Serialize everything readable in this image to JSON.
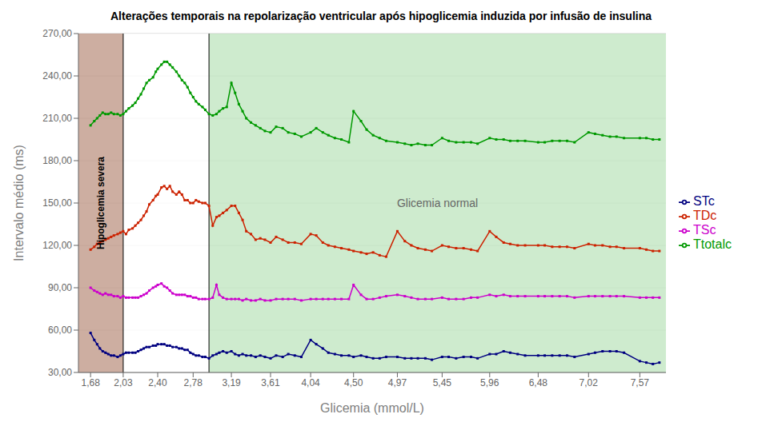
{
  "chart_data": {
    "type": "line",
    "title": "Alterações temporais na repolarização ventricular após hipoglicemia induzida por infusão de insulina",
    "x_label": "Glicemia (mmol/L)",
    "y_label": "Intervalo médio (ms)",
    "xlim": [
      1.55,
      7.85
    ],
    "ylim": [
      30,
      270
    ],
    "xticks": [
      {
        "value": 1.68,
        "label": "1,68"
      },
      {
        "value": 2.03,
        "label": "2,03"
      },
      {
        "value": 2.4,
        "label": "2,40"
      },
      {
        "value": 2.78,
        "label": "2,78"
      },
      {
        "value": 3.19,
        "label": "3,19"
      },
      {
        "value": 3.61,
        "label": "3,61"
      },
      {
        "value": 4.04,
        "label": "4,04"
      },
      {
        "value": 4.5,
        "label": "4,50"
      },
      {
        "value": 4.97,
        "label": "4,97"
      },
      {
        "value": 5.45,
        "label": "5,45"
      },
      {
        "value": 5.96,
        "label": "5,96"
      },
      {
        "value": 6.48,
        "label": "6,48"
      },
      {
        "value": 7.02,
        "label": "7,02"
      },
      {
        "value": 7.57,
        "label": "7,57"
      }
    ],
    "yticks": [
      {
        "value": 30,
        "label": "30,00"
      },
      {
        "value": 60,
        "label": "60,00"
      },
      {
        "value": 90,
        "label": "90,00"
      },
      {
        "value": 120,
        "label": "120,00"
      },
      {
        "value": 150,
        "label": "150,00"
      },
      {
        "value": 180,
        "label": "180,00"
      },
      {
        "value": 210,
        "label": "210,00"
      },
      {
        "value": 240,
        "label": "240,00"
      },
      {
        "value": 270,
        "label": "270,00"
      }
    ],
    "grid": true,
    "legend": "right",
    "marker": "square",
    "line_style": "solid",
    "regions": [
      {
        "start": 1.55,
        "end": 2.03,
        "color": "#c4a090",
        "label": "Hipoglicemia severa"
      },
      {
        "start": 2.03,
        "end": 2.95,
        "color": "#ffffff"
      },
      {
        "start": 2.95,
        "end": 7.85,
        "color": "#c5e8c5",
        "label": "Glicemia normal"
      }
    ],
    "x": [
      1.68,
      1.72,
      1.75,
      1.78,
      1.81,
      1.84,
      1.87,
      1.9,
      1.93,
      1.97,
      2.0,
      2.03,
      2.06,
      2.09,
      2.13,
      2.16,
      2.19,
      2.22,
      2.25,
      2.28,
      2.31,
      2.35,
      2.38,
      2.4,
      2.44,
      2.47,
      2.5,
      2.53,
      2.56,
      2.6,
      2.63,
      2.66,
      2.69,
      2.72,
      2.75,
      2.78,
      2.81,
      2.84,
      2.88,
      2.91,
      2.95,
      2.99,
      3.03,
      3.06,
      3.1,
      3.14,
      3.19,
      3.23,
      3.27,
      3.31,
      3.35,
      3.4,
      3.45,
      3.5,
      3.55,
      3.61,
      3.67,
      3.74,
      3.8,
      3.87,
      3.94,
      4.04,
      4.1,
      4.17,
      4.23,
      4.3,
      4.37,
      4.45,
      4.5,
      4.58,
      4.64,
      4.71,
      4.78,
      4.85,
      4.97,
      5.05,
      5.12,
      5.19,
      5.27,
      5.34,
      5.45,
      5.52,
      5.6,
      5.68,
      5.76,
      5.83,
      5.96,
      6.03,
      6.11,
      6.18,
      6.26,
      6.34,
      6.48,
      6.55,
      6.63,
      6.71,
      6.79,
      6.87,
      7.02,
      7.09,
      7.17,
      7.25,
      7.32,
      7.4,
      7.57,
      7.64,
      7.71,
      7.78
    ],
    "series": [
      {
        "name": "STc",
        "color": "#000080",
        "values": [
          58,
          53,
          50,
          47,
          45,
          44,
          43,
          42,
          42,
          41,
          42,
          43,
          44,
          44,
          44,
          44,
          45,
          46,
          47,
          48,
          48,
          49,
          49,
          50,
          50,
          50,
          49,
          49,
          48,
          48,
          47,
          47,
          46,
          46,
          44,
          43,
          42,
          42,
          41,
          41,
          40,
          42,
          43,
          44,
          45,
          44,
          45,
          43,
          42,
          43,
          42,
          42,
          41,
          42,
          41,
          40,
          42,
          41,
          43,
          42,
          41,
          53,
          50,
          47,
          44,
          43,
          42,
          42,
          41,
          42,
          41,
          40,
          40,
          41,
          41,
          40,
          40,
          40,
          40,
          39,
          41,
          41,
          40,
          41,
          41,
          40,
          43,
          43,
          45,
          44,
          43,
          42,
          42,
          42,
          42,
          42,
          42,
          41,
          43,
          44,
          45,
          45,
          45,
          44,
          38,
          37,
          36,
          37
        ]
      },
      {
        "name": "TSc",
        "color": "#cc00cc",
        "values": [
          90,
          88,
          87,
          86,
          85,
          86,
          85,
          85,
          84,
          84,
          83,
          84,
          83,
          83,
          83,
          83,
          83,
          84,
          85,
          86,
          88,
          90,
          91,
          92,
          93,
          91,
          90,
          88,
          86,
          85,
          85,
          85,
          85,
          84,
          84,
          83,
          83,
          82,
          82,
          82,
          82,
          83,
          92,
          85,
          83,
          82,
          82,
          82,
          82,
          81,
          82,
          81,
          81,
          82,
          81,
          81,
          82,
          82,
          82,
          82,
          81,
          82,
          82,
          82,
          82,
          82,
          82,
          82,
          92,
          85,
          82,
          82,
          83,
          84,
          85,
          84,
          83,
          82,
          82,
          82,
          83,
          82,
          82,
          82,
          83,
          83,
          85,
          84,
          85,
          84,
          84,
          84,
          84,
          84,
          84,
          84,
          84,
          83,
          84,
          84,
          84,
          84,
          84,
          84,
          83,
          83,
          83,
          83
        ]
      },
      {
        "name": "TDc",
        "color": "#cc2200",
        "values": [
          117,
          119,
          121,
          122,
          123,
          124,
          125,
          126,
          127,
          128,
          129,
          130,
          128,
          131,
          132,
          134,
          136,
          138,
          141,
          144,
          149,
          152,
          155,
          156,
          161,
          162,
          160,
          162,
          158,
          156,
          158,
          156,
          152,
          152,
          150,
          150,
          152,
          151,
          150,
          150,
          148,
          134,
          140,
          141,
          143,
          145,
          148,
          148,
          143,
          138,
          130,
          128,
          124,
          125,
          124,
          122,
          126,
          124,
          122,
          122,
          121,
          128,
          127,
          122,
          120,
          119,
          118,
          117,
          116,
          115,
          114,
          115,
          113,
          112,
          130,
          123,
          120,
          118,
          117,
          116,
          120,
          119,
          118,
          118,
          117,
          116,
          130,
          126,
          122,
          121,
          120,
          120,
          120,
          120,
          119,
          119,
          119,
          118,
          121,
          120,
          120,
          119,
          119,
          118,
          118,
          117,
          116,
          116
        ]
      },
      {
        "name": "Ttotalc",
        "color": "#009900",
        "values": [
          205,
          208,
          210,
          212,
          214,
          213,
          213,
          214,
          213,
          213,
          212,
          213,
          215,
          217,
          219,
          221,
          224,
          227,
          231,
          235,
          237,
          239,
          243,
          245,
          248,
          250,
          250,
          248,
          246,
          243,
          240,
          237,
          235,
          232,
          228,
          225,
          222,
          220,
          218,
          216,
          213,
          212,
          213,
          215,
          217,
          218,
          235,
          228,
          220,
          215,
          210,
          207,
          205,
          203,
          201,
          200,
          204,
          203,
          200,
          199,
          197,
          200,
          203,
          200,
          198,
          196,
          195,
          193,
          215,
          208,
          202,
          198,
          196,
          194,
          193,
          192,
          191,
          192,
          191,
          191,
          196,
          194,
          193,
          193,
          193,
          192,
          196,
          195,
          195,
          194,
          194,
          194,
          193,
          193,
          194,
          194,
          194,
          193,
          200,
          199,
          198,
          197,
          197,
          196,
          196,
          196,
          195,
          195
        ]
      }
    ]
  }
}
